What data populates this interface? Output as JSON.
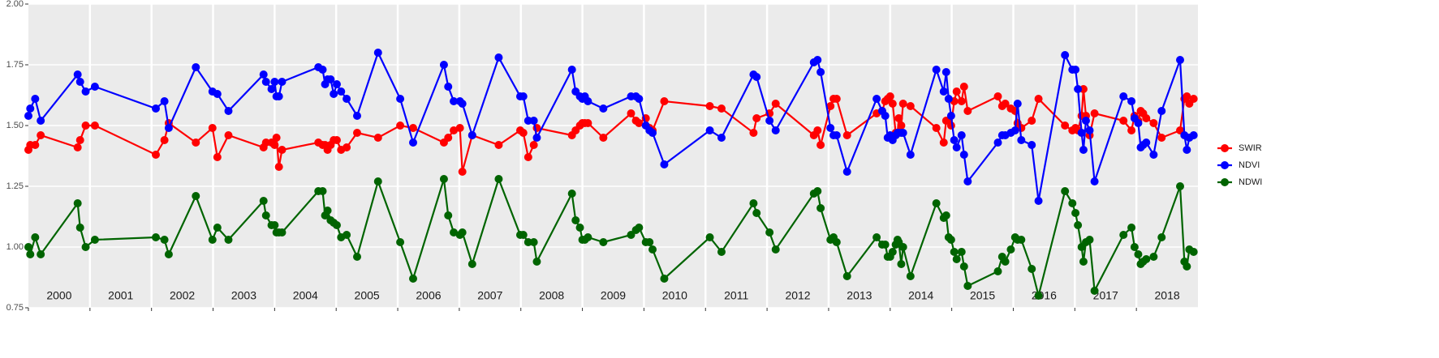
{
  "chart_data": {
    "type": "line",
    "x": [
      2000.0,
      2000.03,
      2000.11,
      2000.2,
      2000.8,
      2000.84,
      2000.93,
      2001.08,
      2002.07,
      2002.21,
      2002.28,
      2002.72,
      2002.99,
      2003.07,
      2003.25,
      2003.82,
      2003.86,
      2003.95,
      2004.0,
      2004.03,
      2004.07,
      2004.12,
      2004.71,
      2004.78,
      2004.82,
      2004.86,
      2004.91,
      2004.96,
      2005.01,
      2005.08,
      2005.17,
      2005.34,
      2005.68,
      2006.04,
      2006.25,
      2006.75,
      2006.82,
      2006.91,
      2007.01,
      2007.05,
      2007.21,
      2007.64,
      2007.99,
      2008.04,
      2008.12,
      2008.21,
      2008.26,
      2008.83,
      2008.89,
      2008.96,
      2009.0,
      2009.04,
      2009.09,
      2009.34,
      2009.79,
      2009.87,
      2009.92,
      2010.03,
      2010.09,
      2010.14,
      2010.33,
      2011.07,
      2011.26,
      2011.78,
      2011.83,
      2012.04,
      2012.14,
      2012.76,
      2012.82,
      2012.87,
      2013.03,
      2013.08,
      2013.13,
      2013.3,
      2013.78,
      2013.87,
      2013.92,
      2013.96,
      2014.0,
      2014.04,
      2014.09,
      2014.12,
      2014.14,
      2014.18,
      2014.21,
      2014.33,
      2014.75,
      2014.87,
      2014.91,
      2014.95,
      2014.99,
      2015.04,
      2015.08,
      2015.16,
      2015.2,
      2015.26,
      2015.75,
      2015.82,
      2015.87,
      2015.96,
      2016.03,
      2016.07,
      2016.13,
      2016.3,
      2016.41,
      2016.84,
      2016.96,
      2017.01,
      2017.05,
      2017.11,
      2017.14,
      2017.18,
      2017.24,
      2017.32,
      2017.79,
      2017.92,
      2017.97,
      2018.03,
      2018.07,
      2018.11,
      2018.16,
      2018.28,
      2018.41,
      2018.71,
      2018.78,
      2018.82,
      2018.86,
      2018.93
    ],
    "series": [
      {
        "name": "SWIR",
        "color": "#ff0000",
        "values": [
          1.4,
          1.42,
          1.42,
          1.46,
          1.41,
          1.44,
          1.5,
          1.5,
          1.38,
          1.44,
          1.51,
          1.43,
          1.49,
          1.37,
          1.46,
          1.41,
          1.43,
          1.43,
          1.42,
          1.45,
          1.33,
          1.4,
          1.43,
          1.42,
          1.42,
          1.4,
          1.42,
          1.44,
          1.44,
          1.4,
          1.41,
          1.47,
          1.45,
          1.5,
          1.49,
          1.43,
          1.45,
          1.48,
          1.49,
          1.31,
          1.46,
          1.42,
          1.48,
          1.47,
          1.37,
          1.42,
          1.49,
          1.46,
          1.48,
          1.5,
          1.51,
          1.51,
          1.51,
          1.45,
          1.55,
          1.52,
          1.51,
          1.53,
          1.49,
          1.48,
          1.6,
          1.58,
          1.57,
          1.47,
          1.53,
          1.55,
          1.59,
          1.46,
          1.48,
          1.42,
          1.58,
          1.61,
          1.61,
          1.46,
          1.55,
          1.56,
          1.6,
          1.61,
          1.62,
          1.59,
          1.47,
          1.47,
          1.53,
          1.5,
          1.59,
          1.58,
          1.49,
          1.43,
          1.52,
          1.52,
          1.5,
          1.6,
          1.64,
          1.6,
          1.66,
          1.56,
          1.62,
          1.58,
          1.59,
          1.57,
          1.56,
          1.51,
          1.49,
          1.52,
          1.61,
          1.5,
          1.48,
          1.49,
          1.48,
          1.54,
          1.65,
          1.54,
          1.46,
          1.55,
          1.52,
          1.48,
          1.54,
          1.52,
          1.56,
          1.55,
          1.53,
          1.51,
          1.45,
          1.48,
          1.61,
          1.62,
          1.59,
          1.61
        ]
      },
      {
        "name": "NDVI",
        "color": "#0000ff",
        "values": [
          1.54,
          1.57,
          1.61,
          1.52,
          1.71,
          1.68,
          1.64,
          1.66,
          1.57,
          1.6,
          1.49,
          1.74,
          1.64,
          1.63,
          1.56,
          1.71,
          1.68,
          1.65,
          1.68,
          1.62,
          1.62,
          1.68,
          1.74,
          1.73,
          1.67,
          1.69,
          1.69,
          1.63,
          1.67,
          1.64,
          1.61,
          1.54,
          1.8,
          1.61,
          1.43,
          1.75,
          1.66,
          1.6,
          1.6,
          1.59,
          1.46,
          1.78,
          1.62,
          1.62,
          1.52,
          1.52,
          1.45,
          1.73,
          1.64,
          1.62,
          1.61,
          1.62,
          1.6,
          1.57,
          1.62,
          1.62,
          1.61,
          1.5,
          1.48,
          1.47,
          1.34,
          1.48,
          1.45,
          1.71,
          1.7,
          1.52,
          1.48,
          1.76,
          1.77,
          1.72,
          1.49,
          1.46,
          1.46,
          1.31,
          1.61,
          1.56,
          1.54,
          1.45,
          1.46,
          1.44,
          1.46,
          1.47,
          1.47,
          1.47,
          1.47,
          1.38,
          1.73,
          1.64,
          1.72,
          1.61,
          1.54,
          1.44,
          1.41,
          1.46,
          1.38,
          1.27,
          1.43,
          1.46,
          1.46,
          1.47,
          1.48,
          1.59,
          1.44,
          1.42,
          1.19,
          1.79,
          1.73,
          1.73,
          1.65,
          1.47,
          1.4,
          1.52,
          1.48,
          1.27,
          1.62,
          1.6,
          1.53,
          1.51,
          1.41,
          1.42,
          1.43,
          1.38,
          1.56,
          1.77,
          1.46,
          1.4,
          1.45,
          1.46
        ]
      },
      {
        "name": "NDWI",
        "color": "#006400",
        "values": [
          1.0,
          0.97,
          1.04,
          0.97,
          1.18,
          1.08,
          1.0,
          1.03,
          1.04,
          1.03,
          0.97,
          1.21,
          1.03,
          1.08,
          1.03,
          1.19,
          1.13,
          1.09,
          1.09,
          1.06,
          1.06,
          1.06,
          1.23,
          1.23,
          1.13,
          1.15,
          1.11,
          1.1,
          1.09,
          1.04,
          1.05,
          0.96,
          1.27,
          1.02,
          0.87,
          1.28,
          1.13,
          1.06,
          1.05,
          1.06,
          0.93,
          1.28,
          1.05,
          1.05,
          1.02,
          1.02,
          0.94,
          1.22,
          1.11,
          1.08,
          1.03,
          1.03,
          1.04,
          1.02,
          1.05,
          1.07,
          1.08,
          1.02,
          1.02,
          0.99,
          0.87,
          1.04,
          0.98,
          1.18,
          1.14,
          1.06,
          0.99,
          1.22,
          1.23,
          1.16,
          1.03,
          1.04,
          1.02,
          0.88,
          1.04,
          1.01,
          1.01,
          0.96,
          0.96,
          0.98,
          1.01,
          1.03,
          1.02,
          0.93,
          1.0,
          0.88,
          1.18,
          1.12,
          1.13,
          1.04,
          1.03,
          0.98,
          0.95,
          0.98,
          0.92,
          0.84,
          0.9,
          0.96,
          0.94,
          0.99,
          1.04,
          1.03,
          1.03,
          0.91,
          0.8,
          1.23,
          1.18,
          1.14,
          1.09,
          1.0,
          0.94,
          1.02,
          1.03,
          0.82,
          1.05,
          1.08,
          1.0,
          0.97,
          0.93,
          0.94,
          0.95,
          0.96,
          1.04,
          1.25,
          0.94,
          0.92,
          0.99,
          0.98
        ]
      }
    ],
    "xlim": [
      2000,
      2019
    ],
    "ylim": [
      0.75,
      2.0
    ],
    "yticks": [
      {
        "value": 0.75,
        "label": "0.75"
      },
      {
        "value": 1.0,
        "label": "1.00"
      },
      {
        "value": 1.25,
        "label": "1.25"
      },
      {
        "value": 1.5,
        "label": "1.50"
      },
      {
        "value": 1.75,
        "label": "1.75"
      },
      {
        "value": 2.0,
        "label": "2.00"
      }
    ],
    "year_labels": [
      "2000",
      "2001",
      "2002",
      "2003",
      "2004",
      "2005",
      "2006",
      "2007",
      "2008",
      "2009",
      "2010",
      "2011",
      "2012",
      "2013",
      "2014",
      "2015",
      "2016",
      "2017",
      "2018"
    ],
    "grid": true,
    "legend": "right"
  }
}
